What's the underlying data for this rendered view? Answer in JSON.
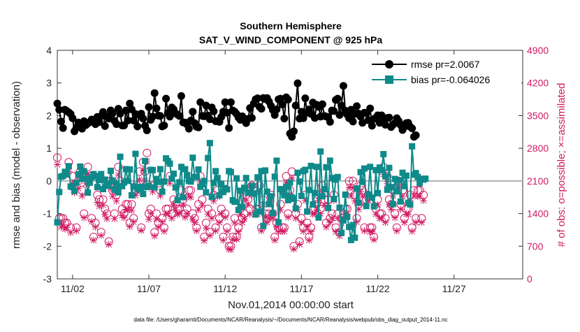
{
  "chart_data": {
    "type": "line",
    "title_line1": "Southern Hemisphere",
    "title_line2": "SAT_V_WIND_COMPONENT @ 925 hPa",
    "xlabel": "Nov.01,2014 00:00:00 start",
    "ylabel_left": "rmse and bias (model - observation)",
    "ylabel_right": "# of obs: o=possible; ×=assimilated",
    "xlim": [
      0,
      30.5
    ],
    "ylim_left": [
      -3,
      4
    ],
    "ylim_right": [
      0,
      4900
    ],
    "x_ticks": [
      {
        "v": 1,
        "label": "11/02"
      },
      {
        "v": 6,
        "label": "11/07"
      },
      {
        "v": 11,
        "label": "11/12"
      },
      {
        "v": 16,
        "label": "11/17"
      },
      {
        "v": 21,
        "label": "11/22"
      },
      {
        "v": 26,
        "label": "11/27"
      }
    ],
    "y_ticks_left": [
      "4",
      "3",
      "2",
      "1",
      "0",
      "-1",
      "-2",
      "-3"
    ],
    "y_ticks_right": [
      "4900",
      "4200",
      "3500",
      "2800",
      "2100",
      "1400",
      "700",
      "0"
    ],
    "legend": {
      "rmse_label": "rmse pr=2.0067",
      "bias_label": "bias pr=-0.064026"
    },
    "colors": {
      "rmse": "#000000",
      "bias": "#0f8a8a",
      "obs": "#d01a62",
      "zero_line": "#b0b0b0"
    },
    "time_step_days": 0.125,
    "series": [
      {
        "name": "rmse",
        "values": [
          2.37,
          2.18,
          1.82,
          1.62,
          2.18,
          2.14,
          2.1,
          2.05,
          1.92,
          1.52,
          1.63,
          1.79,
          1.66,
          1.6,
          1.83,
          1.71,
          1.76,
          1.8,
          1.88,
          1.83,
          1.74,
          1.96,
          1.8,
          1.99,
          2.11,
          1.68,
          1.98,
          1.91,
          2.16,
          2.07,
          1.84,
          1.74,
          2.21,
          2.06,
          1.7,
          1.7,
          2.16,
          1.85,
          2.37,
          2.19,
          1.85,
          2.05,
          1.67,
          2.02,
          2.06,
          1.91,
          1.69,
          1.55,
          2.26,
          1.87,
          1.97,
          2.69,
          2.22,
          2.0,
          1.99,
          1.67,
          1.7,
          2.52,
          2.08,
          1.97,
          2.25,
          2.19,
          2.07,
          2.03,
          1.99,
          2.6,
          1.79,
          1.79,
          1.73,
          1.6,
          1.85,
          2.12,
          1.77,
          1.66,
          1.64,
          2.41,
          1.99,
          1.98,
          2.31,
          2.0,
          1.89,
          2.25,
          2.13,
          1.83,
          1.83,
          1.81,
          1.96,
          2.12,
          2.41,
          2.09,
          1.62,
          2.41,
          2.16,
          2.12,
          2.05,
          1.94,
          1.87,
          1.98,
          1.88,
          1.77,
          1.9,
          2.23,
          1.93,
          2.37,
          2.5,
          2.53,
          2.27,
          2.21,
          2.54,
          2.51,
          2.54,
          2.43,
          2.3,
          2.17,
          2.02,
          2.19,
          2.5,
          2.52,
          2.34,
          1.91,
          2.56,
          2.49,
          1.45,
          1.35,
          1.52,
          2.31,
          2.99,
          1.91,
          2.12,
          1.92,
          2.53,
          2.09,
          2.19,
          2.05,
          2.4,
          1.93,
          2.33,
          2.27,
          1.97,
          2.35,
          1.99,
          1.97,
          1.96,
          1.81,
          2.16,
          2.14,
          2.48,
          2.52,
          2.02,
          2.31,
          2.91,
          2.15,
          2.03,
          1.92,
          2.18,
          1.82,
          2.05,
          2.29,
          2.06,
          1.97,
          1.78,
          2.09,
          2.08,
          1.86,
          2.22,
          1.69,
          1.9,
          1.93,
          2.01,
          1.78,
          2.01,
          1.86,
          1.72,
          1.93,
          1.94,
          1.65,
          1.72,
          1.77,
          1.92,
          1.83,
          1.71,
          1.56,
          1.66,
          1.77,
          1.78,
          1.66,
          1.61,
          1.35,
          1.4
        ]
      },
      {
        "name": "bias",
        "values": [
          -1.27,
          -0.34,
          0.13,
          0.15,
          0.28,
          0.2,
          0.45,
          -0.17,
          -0.19,
          -0.31,
          -0.06,
          0.2,
          0.44,
          0.06,
          0.3,
          0.07,
          -0.36,
          -0.05,
          0.11,
          0.21,
          0.15,
          -0.19,
          0.03,
          0.21,
          -0.25,
          0.04,
          -0.1,
          -0.15,
          0.31,
          0.01,
          -0.27,
          -0.08,
          -0.35,
          0.74,
          -0.16,
          -0.05,
          0.36,
          0.0,
          0.35,
          -0.44,
          -0.17,
          0.83,
          -0.22,
          -0.26,
          -0.18,
          -0.4,
          0.61,
          -0.19,
          -0.15,
          0.34,
          0.33,
          -0.2,
          0.06,
          -0.03,
          0.36,
          -0.33,
          -0.02,
          0.69,
          0.61,
          0.53,
          0.07,
          0.22,
          -0.2,
          -0.59,
          -0.04,
          0.43,
          -0.5,
          0.36,
          0.18,
          -0.0,
          -0.02,
          0.71,
          0.12,
          0.13,
          0.35,
          -0.18,
          -0.1,
          0.0,
          -0.35,
          0.7,
          1.16,
          -0.49,
          -0.06,
          0.3,
          0.09,
          -0.44,
          -0.09,
          -0.34,
          -0.22,
          -0.26,
          0.3,
          0.27,
          -0.59,
          -0.64,
          0.08,
          -0.89,
          -0.3,
          -0.79,
          -0.21,
          0.09,
          -0.36,
          -0.36,
          -0.15,
          -0.38,
          -1.03,
          0.11,
          -0.94,
          0.3,
          -1.38,
          0.32,
          -0.33,
          -0.71,
          -0.47,
          -0.99,
          0.13,
          0.62,
          -1.27,
          -0.25,
          -0.32,
          -0.44,
          -0.18,
          -0.59,
          -0.05,
          -0.5,
          -0.55,
          -0.84,
          0.25,
          -0.02,
          -0.46,
          0.3,
          0.34,
          -0.94,
          -0.28,
          0.46,
          -0.72,
          -0.37,
          0.43,
          -1.12,
          0.9,
          -0.47,
          -0.25,
          0.42,
          -0.83,
          0.62,
          0.09,
          -0.55,
          0.04,
          0.12,
          -0.82,
          -1.59,
          -1.21,
          -0.42,
          -1.1,
          -1.41,
          -1.81,
          -1.35,
          -1.74,
          -0.23,
          -0.67,
          0.27,
          -0.03,
          0.38,
          -0.77,
          -0.42,
          0.43,
          -0.51,
          -0.78,
          0.33,
          -0.37,
          0.41,
          0.33,
          0.82,
          0.14,
          -0.27,
          0.4,
          -0.19,
          -0.71,
          0.06,
          -0.32,
          0.02,
          -0.63,
          0.25,
          -0.16,
          0.16,
          -0.67,
          -0.72,
          1.06,
          0.19,
          0.24,
          0.12,
          -0.07,
          0.06,
          0.04,
          0.07
        ]
      },
      {
        "name": "obs_possible",
        "values": [
          2600,
          1300,
          1300,
          1300,
          1200,
          1200,
          2500,
          1100,
          2200,
          2000,
          1100,
          2100,
          2300,
          1900,
          1400,
          2200,
          2400,
          2200,
          1300,
          900,
          1200,
          1800,
          1700,
          1000,
          1700,
          1500,
          1400,
          800,
          2100,
          1900,
          1400,
          1800,
          2400,
          2100,
          1500,
          1400,
          1600,
          1600,
          1200,
          1600,
          1300,
          1900,
          2000,
          2300,
          1100,
          2500,
          2300,
          2700,
          1400,
          1500,
          2000,
          1000,
          1400,
          1200,
          1900,
          1300,
          1100,
          1500,
          1500,
          2200,
          1400,
          1700,
          1600,
          1500,
          1500,
          1900,
          1700,
          1400,
          1500,
          1900,
          1900,
          1400,
          1300,
          1100,
          1600,
          2200,
          1700,
          900,
          1200,
          1500,
          1000,
          1400,
          1800,
          1100,
          1900,
          1300,
          1500,
          900,
          1400,
          1100,
          700,
          700,
          900,
          1300,
          900,
          1100,
          1500,
          1300,
          1400,
          1800,
          1700,
          1500,
          2000,
          1900,
          1500,
          1500,
          2000,
          1100,
          1700,
          1400,
          1300,
          1400,
          1800,
          1400,
          900,
          1200,
          1100,
          1600,
          1100,
          1100,
          2200,
          1400,
          1900,
          2300,
          700,
          1400,
          1600,
          800,
          1300,
          1100,
          1800,
          1200,
          900,
          1100,
          1500,
          1500,
          1600,
          1800,
          1500,
          2000,
          1700,
          1200,
          1700,
          1300,
          1400,
          1800,
          1100,
          1400,
          1000,
          1300,
          1400,
          1500,
          1500,
          2100,
          1900,
          2100,
          1800,
          1300,
          1600,
          2000,
          1900,
          1100,
          1700,
          1800,
          1100,
          1100,
          900,
          1500,
          1700,
          1400,
          1400,
          2400,
          1300,
          2200,
          1700,
          1600,
          1900,
          1400,
          1100,
          2100,
          1600,
          1900,
          1300,
          1500,
          1500,
          1800,
          1100,
          1900,
          1300,
          1900,
          1900,
          1300,
          1800
        ]
      },
      {
        "name": "obs_assimilated",
        "values": [
          2450,
          1220,
          1110,
          1170,
          1070,
          1100,
          2300,
          990,
          2040,
          1850,
          1030,
          1940,
          2160,
          1780,
          1310,
          2040,
          2240,
          2050,
          1230,
          830,
          1110,
          1640,
          1560,
          930,
          1580,
          1380,
          1290,
          740,
          1940,
          1770,
          1290,
          1670,
          2230,
          1980,
          1360,
          1310,
          1490,
          1480,
          1120,
          1470,
          1220,
          1790,
          1870,
          2130,
          1040,
          2330,
          2100,
          2520,
          1280,
          1400,
          1870,
          920,
          1290,
          1110,
          1780,
          1220,
          1020,
          1390,
          1400,
          2050,
          1300,
          1590,
          1480,
          1380,
          1410,
          1790,
          1590,
          1320,
          1400,
          1770,
          1750,
          1280,
          1210,
          1030,
          1480,
          2060,
          1580,
          820,
          1090,
          1390,
          930,
          1300,
          1670,
          1030,
          1760,
          1210,
          1400,
          830,
          1320,
          1020,
          640,
          630,
          850,
          1200,
          850,
          1010,
          1390,
          1210,
          1290,
          1690,
          1590,
          1390,
          1880,
          1790,
          1390,
          1390,
          1870,
          1030,
          1590,
          1320,
          1210,
          1300,
          1690,
          1300,
          830,
          1110,
          1010,
          1480,
          1020,
          1020,
          2060,
          1320,
          1780,
          2160,
          640,
          1300,
          1490,
          740,
          1210,
          1020,
          1680,
          1110,
          830,
          1010,
          1390,
          1400,
          1480,
          1680,
          1400,
          1860,
          1580,
          1110,
          1580,
          1210,
          1300,
          1680,
          1010,
          1300,
          920,
          1200,
          1300,
          1390,
          1390,
          1960,
          1780,
          1950,
          1670,
          1220,
          1490,
          1870,
          1770,
          1030,
          1580,
          1680,
          1010,
          1010,
          840,
          1390,
          1590,
          1300,
          1300,
          2240,
          1210,
          2040,
          1590,
          1490,
          1780,
          1310,
          1030,
          1960,
          1490,
          1770,
          1210,
          1390,
          1390,
          1680,
          1020,
          1780,
          1210,
          1770,
          1780,
          1210,
          1680
        ]
      }
    ]
  },
  "footer_text": "data file: /Users/gharamti/Documents/NCAR/Reanalysis/~/Documents/NCAR/Reanalysis/webpub/obs_diag_output_2014-11.nc"
}
